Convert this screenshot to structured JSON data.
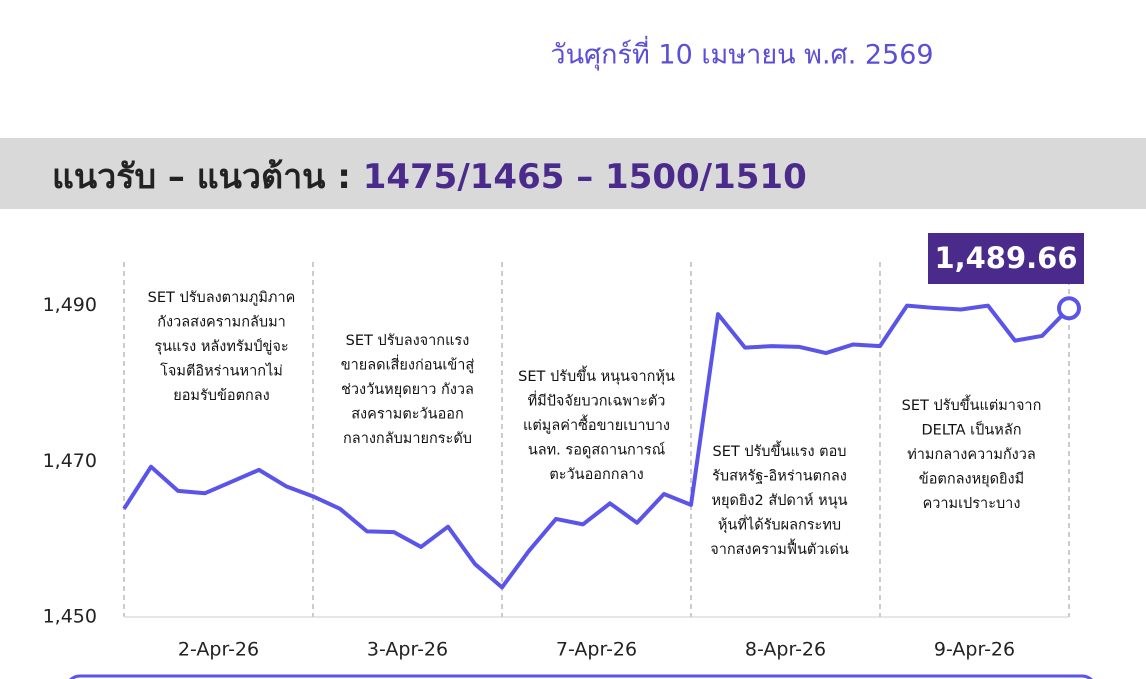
{
  "header": {
    "date": "วันศุกร์ที่ 10 เมษายน พ.ศ. 2569",
    "title_prefix": "แนวรับ – แนวต้าน : ",
    "title_levels": "1475/1465 – 1500/1510"
  },
  "chart_data": {
    "type": "line",
    "color": "#5a54e8",
    "values": [
      1463.9,
      1469.3,
      1466.2,
      1465.9,
      1467.4,
      1468.9,
      1466.8,
      1465.5,
      1463.9,
      1461.0,
      1460.9,
      1459.0,
      1461.6,
      1456.8,
      1453.8,
      1458.5,
      1462.6,
      1461.9,
      1464.6,
      1462.1,
      1465.8,
      1464.4,
      1488.9,
      1484.6,
      1484.8,
      1484.7,
      1483.9,
      1485.0,
      1484.8,
      1490.0,
      1489.7,
      1489.5,
      1490.0,
      1485.5,
      1486.1,
      1489.66
    ],
    "last_value_label": "1,489.66",
    "days": [
      "2-Apr-26",
      "3-Apr-26",
      "7-Apr-26",
      "8-Apr-26",
      "9-Apr-26"
    ],
    "ylim": [
      1450,
      1495.6
    ],
    "yticks": [
      {
        "value": 1450,
        "label": "1,450"
      },
      {
        "value": 1470,
        "label": "1,470"
      },
      {
        "value": 1490,
        "label": "1,490"
      }
    ],
    "annotations": [
      [
        "SET ปรับลงตามภูมิภาค",
        "กังวลสงครามกลับมา",
        "รุนแรง หลังทรัมป์ขู่จะ",
        "โจมตีอิหร่านหากไม่",
        "ยอมรับข้อตกลง"
      ],
      [
        "SET ปรับลงจากแรง",
        "ขายลดเสี่ยงก่อนเข้าสู่",
        "ช่วงวันหยุดยาว กังวล",
        "สงครามตะวันออก",
        "กลางกลับมายกระดับ"
      ],
      [
        "SET ปรับขึ้น หนุนจากหุ้น",
        "ที่มีปัจจัยบวกเฉพาะตัว",
        "แต่มูลค่าซื้อขายเบาบาง",
        "นลท. รอดูสถานการณ์",
        "ตะวันออกกลาง"
      ],
      [
        "SET ปรับขึ้นแรง ตอบ",
        "รับสหรัฐ-อิหร่านตกลง",
        "หยุดยิง2 สัปดาห์ หนุน",
        "หุ้นที่ได้รับผลกระทบ",
        "จากสงครามฟื้นตัวเด่น"
      ],
      [
        "SET ปรับขึ้นแต่มาจาก",
        "DELTA เป็นหลัก",
        "ท่ามกลางความกังวล",
        "ข้อตกลงหยุดยิงมี",
        "ความเปราะบาง"
      ]
    ]
  }
}
